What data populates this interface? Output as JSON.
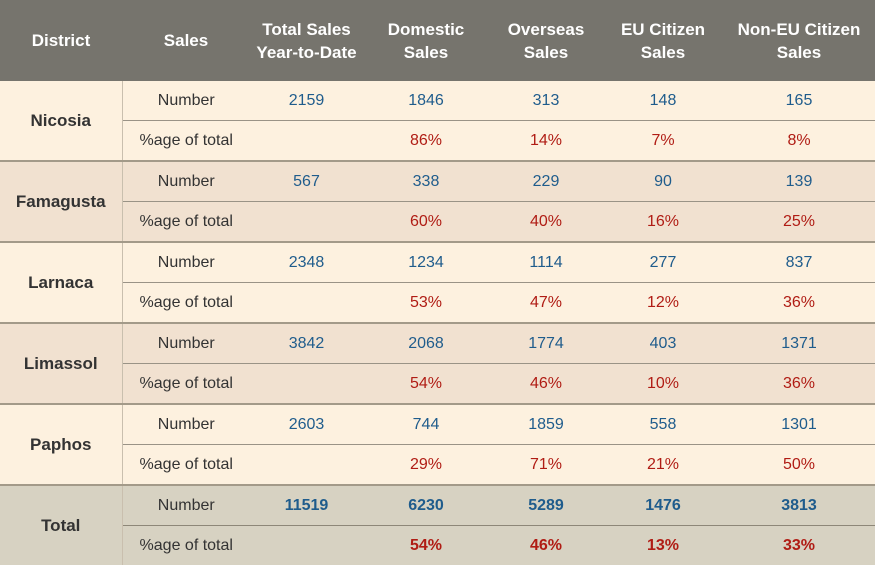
{
  "header": {
    "district": "District",
    "sales": "Sales",
    "total_ytd": [
      "Total Sales",
      "Year-to-Date"
    ],
    "domestic": [
      "Domestic",
      "Sales"
    ],
    "overseas": [
      "Overseas",
      "Sales"
    ],
    "eu": [
      "EU Citizen",
      "Sales"
    ],
    "non_eu": [
      "Non-EU Citizen",
      "Sales"
    ]
  },
  "row_labels": {
    "number": "Number",
    "pct": "%age of total"
  },
  "districts": [
    {
      "name": "Nicosia",
      "number": {
        "total": "2159",
        "domestic": "1846",
        "overseas": "313",
        "eu": "148",
        "non_eu": "165"
      },
      "pct": {
        "domestic": "86%",
        "overseas": "14%",
        "eu": "7%",
        "non_eu": "8%"
      }
    },
    {
      "name": "Famagusta",
      "number": {
        "total": "567",
        "domestic": "338",
        "overseas": "229",
        "eu": "90",
        "non_eu": "139"
      },
      "pct": {
        "domestic": "60%",
        "overseas": "40%",
        "eu": "16%",
        "non_eu": "25%"
      }
    },
    {
      "name": "Larnaca",
      "number": {
        "total": "2348",
        "domestic": "1234",
        "overseas": "1114",
        "eu": "277",
        "non_eu": "837"
      },
      "pct": {
        "domestic": "53%",
        "overseas": "47%",
        "eu": "12%",
        "non_eu": "36%"
      }
    },
    {
      "name": "Limassol",
      "number": {
        "total": "3842",
        "domestic": "2068",
        "overseas": "1774",
        "eu": "403",
        "non_eu": "1371"
      },
      "pct": {
        "domestic": "54%",
        "overseas": "46%",
        "eu": "10%",
        "non_eu": "36%"
      }
    },
    {
      "name": "Paphos",
      "number": {
        "total": "2603",
        "domestic": "744",
        "overseas": "1859",
        "eu": "558",
        "non_eu": "1301"
      },
      "pct": {
        "domestic": "29%",
        "overseas": "71%",
        "eu": "21%",
        "non_eu": "50%"
      }
    }
  ],
  "total": {
    "name": "Total",
    "number": {
      "total": "11519",
      "domestic": "6230",
      "overseas": "5289",
      "eu": "1476",
      "non_eu": "3813"
    },
    "pct": {
      "domestic": "54%",
      "overseas": "46%",
      "eu": "13%",
      "non_eu": "33%"
    }
  },
  "colors": {
    "header_bg": "#76746d",
    "row_light": "#fdf1df",
    "row_dark": "#f1e1d0",
    "total_bg": "#d7d2c2",
    "number_text": "#1f5c8c",
    "percent_text": "#b01c14"
  }
}
